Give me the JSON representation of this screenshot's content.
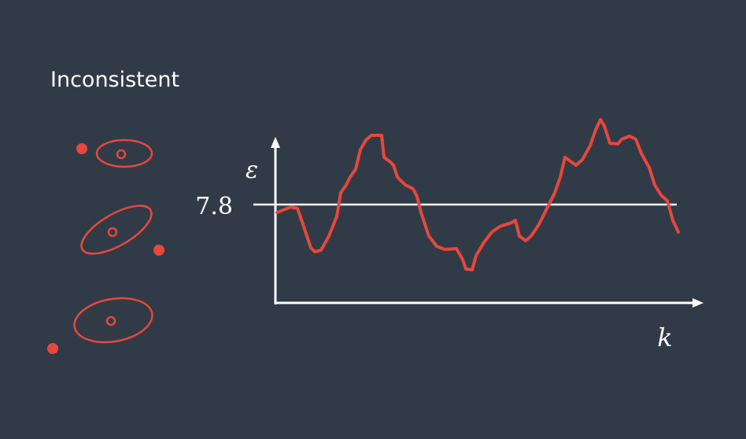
{
  "title": "Inconsistent",
  "axes": {
    "y_label": "ε",
    "x_label": "k"
  },
  "threshold": {
    "label": "7.8"
  }
}
